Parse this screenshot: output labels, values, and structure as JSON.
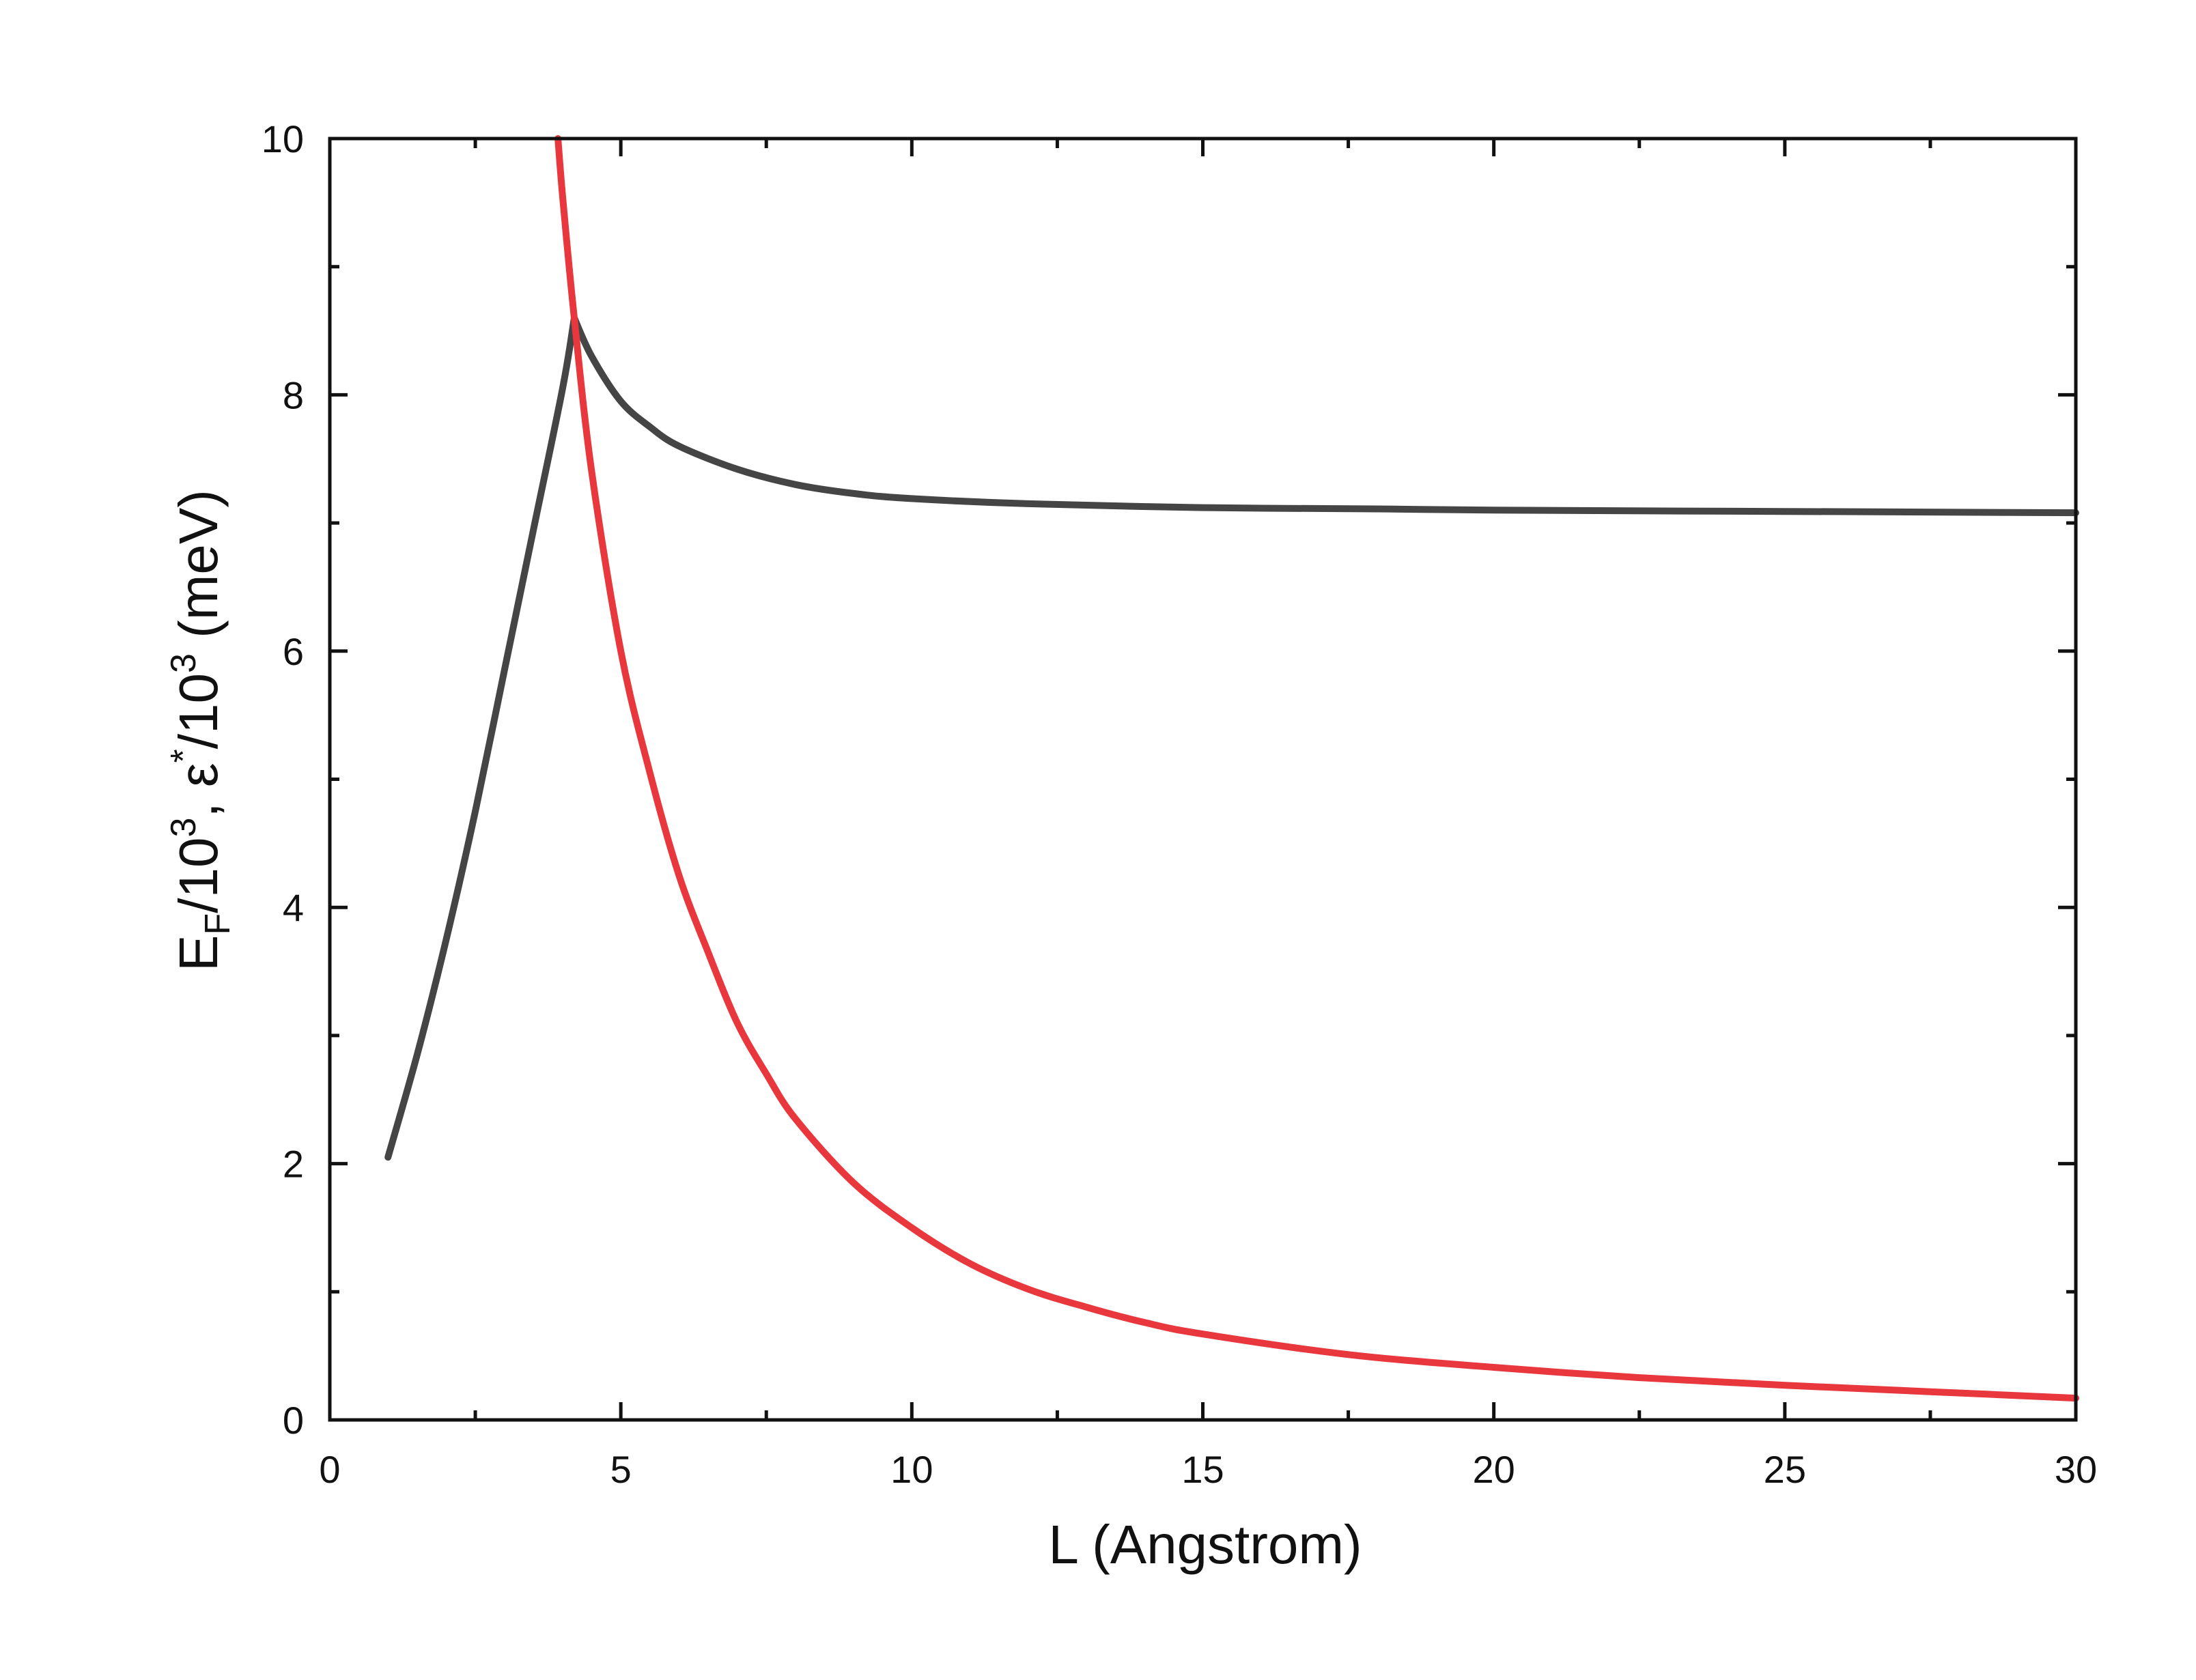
{
  "chart_data": {
    "type": "line",
    "xlabel": "L  (Angstrom)",
    "ylabel": {
      "p1": "E",
      "sub1": "F",
      "p2": "/10",
      "sup1": "3",
      "p3": ", ε",
      "sup2": "*",
      "p4": "/10",
      "sup3": "3",
      "p5": " (meV)"
    },
    "xlim": [
      0,
      30
    ],
    "ylim": [
      0,
      10
    ],
    "xticks": [
      0,
      5,
      10,
      15,
      20,
      25,
      30
    ],
    "xtick_labels": [
      "0",
      "5",
      "10",
      "15",
      "20",
      "25",
      "30"
    ],
    "yticks": [
      0,
      2,
      4,
      6,
      8,
      10
    ],
    "ytick_labels": [
      "0",
      "2",
      "4",
      "6",
      "8",
      "10"
    ],
    "x_minor_step": 2.5,
    "y_minor_step": 1,
    "grid": false,
    "legend": "none",
    "series": [
      {
        "color": "#454545",
        "x": [
          1.0,
          1.5,
          2.0,
          2.5,
          3.0,
          3.5,
          4.0,
          4.2,
          4.5,
          5.0,
          5.5,
          6.0,
          7.0,
          8.0,
          9.0,
          10.0,
          12.0,
          15.0,
          18.0,
          20.0,
          25.0,
          30.0
        ],
        "y": [
          2.05,
          2.85,
          3.75,
          4.75,
          5.85,
          6.95,
          8.05,
          8.6,
          8.3,
          7.95,
          7.75,
          7.6,
          7.42,
          7.3,
          7.23,
          7.19,
          7.15,
          7.12,
          7.11,
          7.1,
          7.09,
          7.08
        ]
      },
      {
        "color": "#e8383d",
        "x": [
          3.92,
          4.0,
          4.2,
          4.5,
          5.0,
          5.5,
          6.0,
          6.5,
          7.0,
          7.5,
          8.0,
          9.0,
          10.0,
          11.0,
          12.0,
          13.0,
          14.0,
          15.0,
          17.5,
          20.0,
          22.5,
          25.0,
          27.5,
          30.0
        ],
        "y": [
          10.0,
          9.55,
          8.6,
          7.4,
          6.0,
          5.05,
          4.25,
          3.65,
          3.1,
          2.7,
          2.35,
          1.85,
          1.5,
          1.22,
          1.02,
          0.88,
          0.76,
          0.67,
          0.51,
          0.41,
          0.33,
          0.27,
          0.22,
          0.17
        ]
      }
    ]
  }
}
